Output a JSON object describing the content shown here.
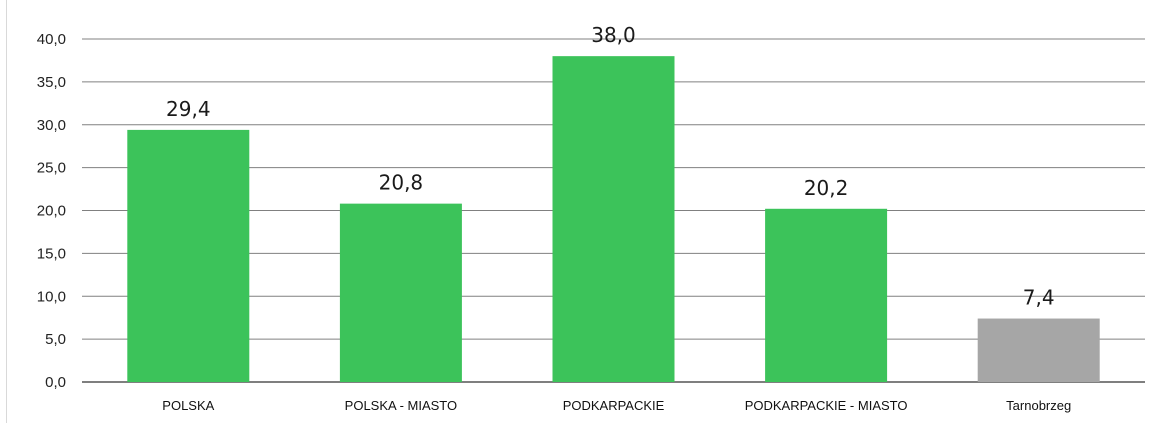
{
  "chart_data": {
    "type": "bar",
    "categories": [
      "POLSKA",
      "POLSKA - MIASTO",
      "PODKARPACKIE",
      "PODKARPACKIE - MIASTO",
      "Tarnobrzeg"
    ],
    "values": [
      29.4,
      20.8,
      38.0,
      20.2,
      7.4
    ],
    "data_labels": [
      "29,4",
      "20,8",
      "38,0",
      "20,2",
      "7,4"
    ],
    "bar_colors": [
      "#3cc35a",
      "#3cc35a",
      "#3cc35a",
      "#3cc35a",
      "#a6a6a6"
    ],
    "ylim": [
      0,
      40
    ],
    "yticks": [
      0,
      5,
      10,
      15,
      20,
      25,
      30,
      35,
      40
    ],
    "ytick_labels": [
      "0,0",
      "5,0",
      "10,0",
      "15,0",
      "20,0",
      "25,0",
      "30,0",
      "35,0",
      "40,0"
    ],
    "grid": true,
    "gridline_color": "#808080",
    "title": "",
    "xlabel": "",
    "ylabel": ""
  }
}
